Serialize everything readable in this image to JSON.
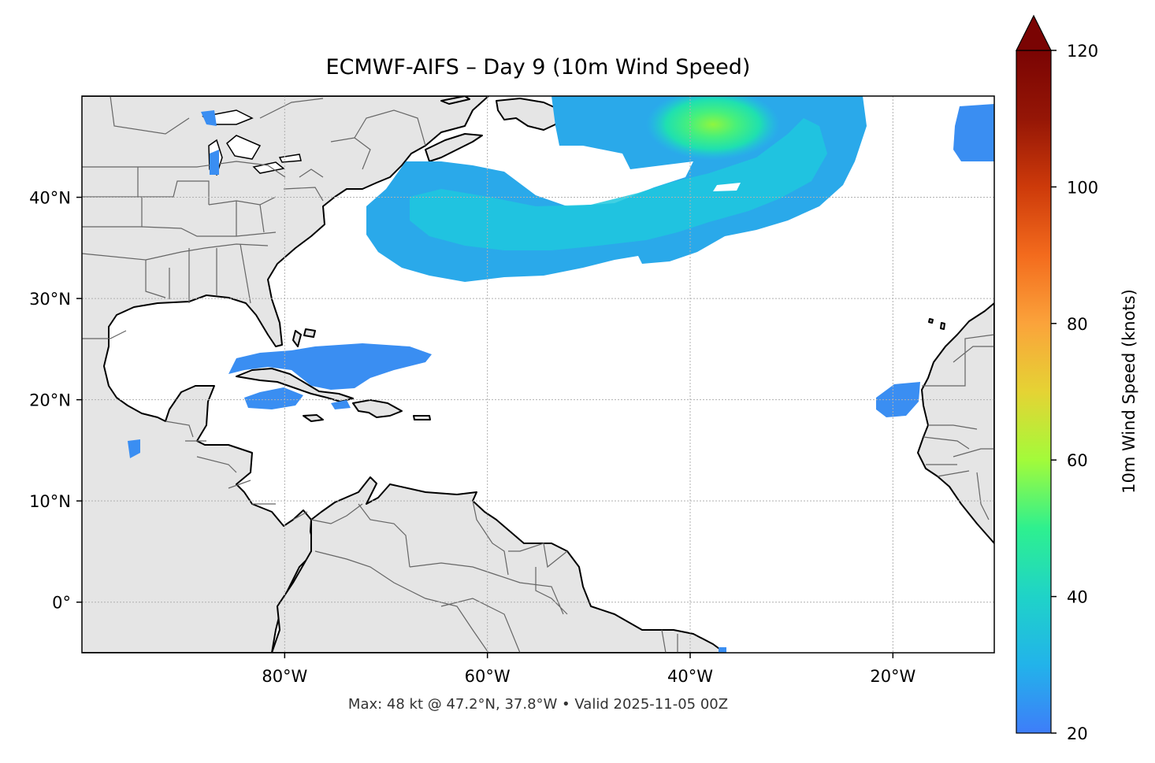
{
  "map": {
    "title": "ECMWF-AIFS – Day 9 (10m Wind Speed)",
    "footer": "Max: 48 kt @ 47.2°N, 37.8°W • Valid 2025-11-05 00Z",
    "lon_range": [
      -100,
      -10
    ],
    "lat_range": [
      -5,
      50
    ],
    "lon_ticks": [
      "80°W",
      "60°W",
      "40°W",
      "20°W"
    ],
    "lat_ticks": [
      "40°N",
      "30°N",
      "20°N",
      "10°N",
      "0°"
    ],
    "colors": {
      "land": "#e5e5e5",
      "coast": "#000000",
      "borders": "#666666",
      "grid": "#b0b0b0"
    }
  },
  "colorbar": {
    "label": "10m Wind Speed (knots)",
    "min": 20,
    "max": 120,
    "ticks": [
      "20",
      "40",
      "60",
      "80",
      "100",
      "120"
    ],
    "colormap": [
      "#3e7df9",
      "#1fc8de",
      "#2ef08f",
      "#a3fb3a",
      "#e5d334",
      "#fba33b",
      "#f36b1d",
      "#cd3a0a",
      "#951606",
      "#7a0403"
    ]
  }
}
